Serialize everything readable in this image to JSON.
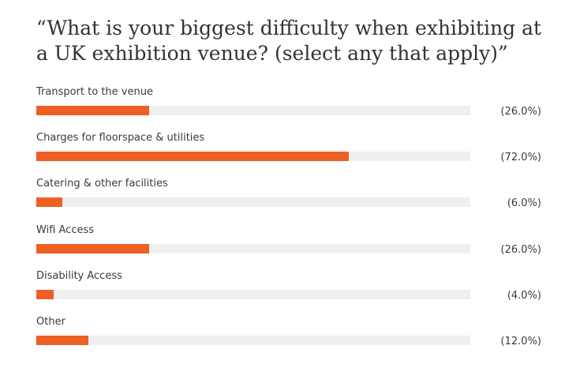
{
  "title": "“What is your biggest difficulty when exhibiting at a UK exhibition venue? (select any that apply)”",
  "colors": {
    "bar": "#ee5f24",
    "track": "#efefef",
    "text": "#3a3a3a"
  },
  "chart_data": {
    "type": "bar",
    "orientation": "horizontal",
    "title": "“What is your biggest difficulty when exhibiting at a UK exhibition venue? (select any that apply)”",
    "categories": [
      "Transport to the venue",
      "Charges for floorspace & utilities",
      "Catering & other facilities",
      "Wifi Access",
      "Disability Access",
      "Other"
    ],
    "values": [
      26.0,
      72.0,
      6.0,
      26.0,
      4.0,
      12.0
    ],
    "value_labels": [
      "(26.0%)",
      "(72.0%)",
      "(6.0%)",
      "(26.0%)",
      "(4.0%)",
      "(12.0%)"
    ],
    "xlim": [
      0,
      100
    ],
    "grid": false,
    "legend": "none"
  }
}
